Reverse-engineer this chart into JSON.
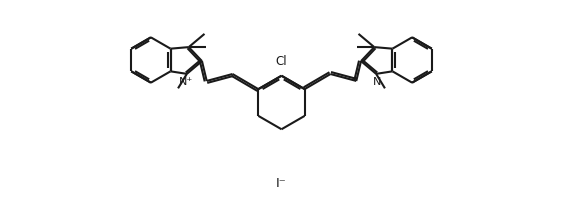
{
  "background_color": "#ffffff",
  "line_color": "#1a1a1a",
  "line_width": 1.5,
  "text_color": "#1a1a1a",
  "font_size": 8.5,
  "iodide_label": "I⁻",
  "chloro_label": "Cl",
  "nitrogen_left_label": "N⁺",
  "nitrogen_right_label": "N",
  "figsize": [
    5.63,
    2.07
  ],
  "dpi": 100,
  "xlim": [
    -1.5,
    11.5
  ],
  "ylim": [
    -2.2,
    4.2
  ]
}
